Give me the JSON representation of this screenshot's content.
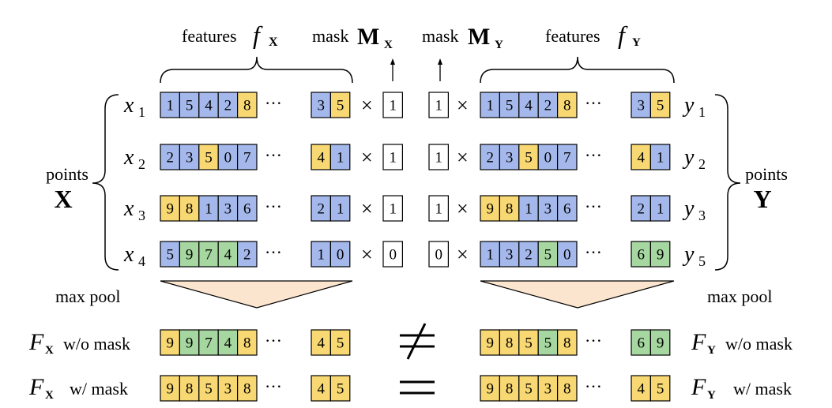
{
  "colors": {
    "blue": "#a4b8ec",
    "yellow": "#f8d873",
    "green": "#a6d7a0",
    "white": "#ffffff",
    "pool": "#fbe5cf",
    "stroke": "#000000"
  },
  "labels": {
    "features_x_word": "features",
    "features_x_sym": "f",
    "features_x_sub": "X",
    "mask_x_word": "mask",
    "mask_x_sym": "M",
    "mask_x_sub": "X",
    "mask_y_word": "mask",
    "mask_y_sym": "M",
    "mask_y_sub": "Y",
    "features_y_word": "features",
    "features_y_sym": "f",
    "features_y_sub": "Y",
    "points_x_word": "points",
    "points_x_sym": "X",
    "points_y_word": "points",
    "points_y_sym": "Y",
    "max_pool_left": "max pool",
    "max_pool_right": "max pool",
    "fx_sym": "F",
    "fx_sub": "X",
    "fy_sym": "F",
    "fy_sub": "Y",
    "wo_mask": "w/o mask",
    "w_mask": "w/ mask",
    "not_equal": "≠",
    "equal": "=",
    "ellipsis": "···",
    "times": "×"
  },
  "rows_x": [
    {
      "var": "x",
      "sub": "1",
      "cells": [
        [
          "1",
          "b"
        ],
        [
          "5",
          "b"
        ],
        [
          "4",
          "b"
        ],
        [
          "2",
          "b"
        ],
        [
          "8",
          "y"
        ]
      ],
      "tail": [
        [
          "3",
          "b"
        ],
        [
          "5",
          "y"
        ]
      ],
      "mask": "1"
    },
    {
      "var": "x",
      "sub": "2",
      "cells": [
        [
          "2",
          "b"
        ],
        [
          "3",
          "b"
        ],
        [
          "5",
          "y"
        ],
        [
          "0",
          "b"
        ],
        [
          "7",
          "b"
        ]
      ],
      "tail": [
        [
          "4",
          "y"
        ],
        [
          "1",
          "b"
        ]
      ],
      "mask": "1"
    },
    {
      "var": "x",
      "sub": "3",
      "cells": [
        [
          "9",
          "y"
        ],
        [
          "8",
          "y"
        ],
        [
          "1",
          "b"
        ],
        [
          "3",
          "b"
        ],
        [
          "6",
          "b"
        ]
      ],
      "tail": [
        [
          "2",
          "b"
        ],
        [
          "1",
          "b"
        ]
      ],
      "mask": "1"
    },
    {
      "var": "x",
      "sub": "4",
      "cells": [
        [
          "5",
          "b"
        ],
        [
          "9",
          "g"
        ],
        [
          "7",
          "g"
        ],
        [
          "4",
          "g"
        ],
        [
          "2",
          "b"
        ]
      ],
      "tail": [
        [
          "1",
          "b"
        ],
        [
          "0",
          "b"
        ]
      ],
      "mask": "0"
    }
  ],
  "rows_y": [
    {
      "var": "y",
      "sub": "1",
      "cells": [
        [
          "1",
          "b"
        ],
        [
          "5",
          "b"
        ],
        [
          "4",
          "b"
        ],
        [
          "2",
          "b"
        ],
        [
          "8",
          "y"
        ]
      ],
      "tail": [
        [
          "3",
          "b"
        ],
        [
          "5",
          "y"
        ]
      ],
      "mask": "1"
    },
    {
      "var": "y",
      "sub": "2",
      "cells": [
        [
          "2",
          "b"
        ],
        [
          "3",
          "b"
        ],
        [
          "5",
          "y"
        ],
        [
          "0",
          "b"
        ],
        [
          "7",
          "b"
        ]
      ],
      "tail": [
        [
          "4",
          "y"
        ],
        [
          "1",
          "b"
        ]
      ],
      "mask": "1"
    },
    {
      "var": "y",
      "sub": "3",
      "cells": [
        [
          "9",
          "y"
        ],
        [
          "8",
          "y"
        ],
        [
          "1",
          "b"
        ],
        [
          "3",
          "b"
        ],
        [
          "6",
          "b"
        ]
      ],
      "tail": [
        [
          "2",
          "b"
        ],
        [
          "1",
          "b"
        ]
      ],
      "mask": "1"
    },
    {
      "var": "y",
      "sub": "5",
      "cells": [
        [
          "1",
          "b"
        ],
        [
          "3",
          "b"
        ],
        [
          "2",
          "b"
        ],
        [
          "5",
          "g"
        ],
        [
          "0",
          "b"
        ]
      ],
      "tail": [
        [
          "6",
          "g"
        ],
        [
          "9",
          "g"
        ]
      ],
      "mask": "0"
    }
  ],
  "pooled": {
    "fx_wo": {
      "cells": [
        [
          "9",
          "y"
        ],
        [
          "9",
          "g"
        ],
        [
          "7",
          "g"
        ],
        [
          "4",
          "g"
        ],
        [
          "8",
          "y"
        ]
      ],
      "tail": [
        [
          "4",
          "y"
        ],
        [
          "5",
          "y"
        ]
      ]
    },
    "fx_w": {
      "cells": [
        [
          "9",
          "y"
        ],
        [
          "8",
          "y"
        ],
        [
          "5",
          "y"
        ],
        [
          "3",
          "y"
        ],
        [
          "8",
          "y"
        ]
      ],
      "tail": [
        [
          "4",
          "y"
        ],
        [
          "5",
          "y"
        ]
      ]
    },
    "fy_wo": {
      "cells": [
        [
          "9",
          "y"
        ],
        [
          "8",
          "y"
        ],
        [
          "5",
          "y"
        ],
        [
          "5",
          "g"
        ],
        [
          "8",
          "y"
        ]
      ],
      "tail": [
        [
          "6",
          "g"
        ],
        [
          "9",
          "g"
        ]
      ]
    },
    "fy_w": {
      "cells": [
        [
          "9",
          "y"
        ],
        [
          "8",
          "y"
        ],
        [
          "5",
          "y"
        ],
        [
          "3",
          "y"
        ],
        [
          "8",
          "y"
        ]
      ],
      "tail": [
        [
          "4",
          "y"
        ],
        [
          "5",
          "y"
        ]
      ]
    }
  }
}
